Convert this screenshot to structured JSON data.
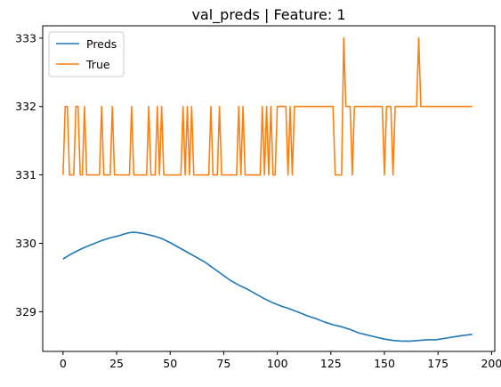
{
  "chart_data": {
    "type": "line",
    "title": "val_preds | Feature: 1",
    "xlabel": "",
    "ylabel": "",
    "xlim": [
      -9.5,
      201.5
    ],
    "ylim": [
      328.42,
      333.18
    ],
    "x_ticks": [
      0,
      25,
      50,
      75,
      100,
      125,
      150,
      175,
      200
    ],
    "y_ticks": [
      329,
      330,
      331,
      332,
      333
    ],
    "grid": false,
    "legend": {
      "placement": "top-left",
      "entries": [
        "Preds",
        "True"
      ]
    },
    "series": [
      {
        "name": "Preds",
        "color": "#1f77b4",
        "points": [
          [
            0,
            329.77
          ],
          [
            3,
            329.83
          ],
          [
            6,
            329.88
          ],
          [
            10,
            329.94
          ],
          [
            14,
            329.99
          ],
          [
            18,
            330.04
          ],
          [
            22,
            330.08
          ],
          [
            26,
            330.11
          ],
          [
            30,
            330.15
          ],
          [
            32,
            330.16
          ],
          [
            34,
            330.16
          ],
          [
            38,
            330.14
          ],
          [
            42,
            330.11
          ],
          [
            46,
            330.07
          ],
          [
            50,
            330.01
          ],
          [
            54,
            329.94
          ],
          [
            58,
            329.87
          ],
          [
            62,
            329.8
          ],
          [
            66,
            329.73
          ],
          [
            70,
            329.64
          ],
          [
            74,
            329.55
          ],
          [
            78,
            329.46
          ],
          [
            82,
            329.39
          ],
          [
            86,
            329.33
          ],
          [
            90,
            329.26
          ],
          [
            94,
            329.19
          ],
          [
            98,
            329.13
          ],
          [
            102,
            329.08
          ],
          [
            106,
            329.04
          ],
          [
            110,
            328.99
          ],
          [
            114,
            328.94
          ],
          [
            118,
            328.9
          ],
          [
            122,
            328.85
          ],
          [
            126,
            328.81
          ],
          [
            130,
            328.78
          ],
          [
            134,
            328.74
          ],
          [
            138,
            328.69
          ],
          [
            142,
            328.66
          ],
          [
            146,
            328.63
          ],
          [
            150,
            328.6
          ],
          [
            154,
            328.58
          ],
          [
            158,
            328.57
          ],
          [
            162,
            328.57
          ],
          [
            166,
            328.58
          ],
          [
            170,
            328.59
          ],
          [
            174,
            328.59
          ],
          [
            178,
            328.61
          ],
          [
            182,
            328.63
          ],
          [
            186,
            328.65
          ],
          [
            191,
            328.67
          ]
        ]
      },
      {
        "name": "True",
        "color": "#ff7f0e",
        "points": [
          [
            0,
            331
          ],
          [
            1,
            332
          ],
          [
            2,
            332
          ],
          [
            3,
            331
          ],
          [
            4,
            331
          ],
          [
            5,
            331
          ],
          [
            6,
            332
          ],
          [
            7,
            332
          ],
          [
            8,
            331
          ],
          [
            9,
            331
          ],
          [
            10,
            332
          ],
          [
            11,
            331
          ],
          [
            12,
            331
          ],
          [
            13,
            331
          ],
          [
            14,
            331
          ],
          [
            15,
            331
          ],
          [
            16,
            331
          ],
          [
            17,
            331
          ],
          [
            18,
            332
          ],
          [
            19,
            331
          ],
          [
            20,
            331
          ],
          [
            21,
            331
          ],
          [
            22,
            331
          ],
          [
            23,
            332
          ],
          [
            24,
            331
          ],
          [
            25,
            331
          ],
          [
            26,
            331
          ],
          [
            27,
            331
          ],
          [
            28,
            331
          ],
          [
            29,
            331
          ],
          [
            30,
            331
          ],
          [
            31,
            331
          ],
          [
            32,
            332
          ],
          [
            33,
            331
          ],
          [
            34,
            331
          ],
          [
            35,
            331
          ],
          [
            36,
            331
          ],
          [
            37,
            331
          ],
          [
            38,
            331
          ],
          [
            39,
            331
          ],
          [
            40,
            332
          ],
          [
            41,
            331
          ],
          [
            42,
            331
          ],
          [
            43,
            331
          ],
          [
            44,
            332
          ],
          [
            45,
            331
          ],
          [
            46,
            332
          ],
          [
            47,
            331
          ],
          [
            48,
            331
          ],
          [
            49,
            331
          ],
          [
            50,
            331
          ],
          [
            51,
            331
          ],
          [
            52,
            331
          ],
          [
            53,
            331
          ],
          [
            54,
            331
          ],
          [
            55,
            331
          ],
          [
            56,
            332
          ],
          [
            57,
            331
          ],
          [
            58,
            332
          ],
          [
            59,
            331
          ],
          [
            60,
            332
          ],
          [
            61,
            331
          ],
          [
            62,
            331
          ],
          [
            63,
            331
          ],
          [
            64,
            331
          ],
          [
            65,
            331
          ],
          [
            66,
            331
          ],
          [
            67,
            331
          ],
          [
            68,
            331
          ],
          [
            69,
            332
          ],
          [
            70,
            331
          ],
          [
            71,
            331
          ],
          [
            72,
            331
          ],
          [
            73,
            332
          ],
          [
            74,
            331
          ],
          [
            75,
            331
          ],
          [
            76,
            331
          ],
          [
            77,
            331
          ],
          [
            78,
            331
          ],
          [
            79,
            331
          ],
          [
            80,
            331
          ],
          [
            81,
            331
          ],
          [
            82,
            332
          ],
          [
            83,
            331
          ],
          [
            84,
            332
          ],
          [
            85,
            331
          ],
          [
            86,
            331
          ],
          [
            87,
            331
          ],
          [
            88,
            331
          ],
          [
            89,
            331
          ],
          [
            90,
            331
          ],
          [
            91,
            331
          ],
          [
            92,
            331
          ],
          [
            93,
            332
          ],
          [
            94,
            331
          ],
          [
            95,
            332
          ],
          [
            96,
            331
          ],
          [
            97,
            332
          ],
          [
            98,
            331
          ],
          [
            99,
            331
          ],
          [
            100,
            332
          ],
          [
            101,
            332
          ],
          [
            102,
            332
          ],
          [
            103,
            332
          ],
          [
            104,
            332
          ],
          [
            105,
            331
          ],
          [
            106,
            332
          ],
          [
            107,
            331
          ],
          [
            108,
            332
          ],
          [
            109,
            332
          ],
          [
            110,
            332
          ],
          [
            111,
            332
          ],
          [
            112,
            332
          ],
          [
            113,
            332
          ],
          [
            114,
            332
          ],
          [
            115,
            332
          ],
          [
            116,
            332
          ],
          [
            117,
            332
          ],
          [
            118,
            332
          ],
          [
            119,
            332
          ],
          [
            120,
            332
          ],
          [
            121,
            332
          ],
          [
            122,
            332
          ],
          [
            123,
            332
          ],
          [
            124,
            332
          ],
          [
            125,
            332
          ],
          [
            126,
            332
          ],
          [
            127,
            331
          ],
          [
            128,
            331
          ],
          [
            129,
            331
          ],
          [
            130,
            331
          ],
          [
            131,
            333
          ],
          [
            132,
            332
          ],
          [
            133,
            332
          ],
          [
            134,
            332
          ],
          [
            135,
            331
          ],
          [
            136,
            332
          ],
          [
            137,
            332
          ],
          [
            138,
            332
          ],
          [
            139,
            332
          ],
          [
            140,
            332
          ],
          [
            141,
            332
          ],
          [
            142,
            332
          ],
          [
            143,
            332
          ],
          [
            144,
            332
          ],
          [
            145,
            332
          ],
          [
            146,
            332
          ],
          [
            147,
            332
          ],
          [
            148,
            332
          ],
          [
            149,
            332
          ],
          [
            150,
            331
          ],
          [
            151,
            332
          ],
          [
            152,
            332
          ],
          [
            153,
            332
          ],
          [
            154,
            331
          ],
          [
            155,
            332
          ],
          [
            156,
            332
          ],
          [
            157,
            332
          ],
          [
            158,
            332
          ],
          [
            159,
            332
          ],
          [
            160,
            332
          ],
          [
            161,
            332
          ],
          [
            162,
            332
          ],
          [
            163,
            332
          ],
          [
            164,
            332
          ],
          [
            165,
            332
          ],
          [
            166,
            333
          ],
          [
            167,
            332
          ],
          [
            168,
            332
          ],
          [
            169,
            332
          ],
          [
            170,
            332
          ],
          [
            171,
            332
          ],
          [
            172,
            332
          ],
          [
            173,
            332
          ],
          [
            174,
            332
          ],
          [
            175,
            332
          ],
          [
            176,
            332
          ],
          [
            177,
            332
          ],
          [
            178,
            332
          ],
          [
            179,
            332
          ],
          [
            180,
            332
          ],
          [
            181,
            332
          ],
          [
            182,
            332
          ],
          [
            183,
            332
          ],
          [
            184,
            332
          ],
          [
            185,
            332
          ],
          [
            186,
            332
          ],
          [
            187,
            332
          ],
          [
            188,
            332
          ],
          [
            189,
            332
          ],
          [
            190,
            332
          ],
          [
            191,
            332
          ]
        ]
      }
    ]
  }
}
